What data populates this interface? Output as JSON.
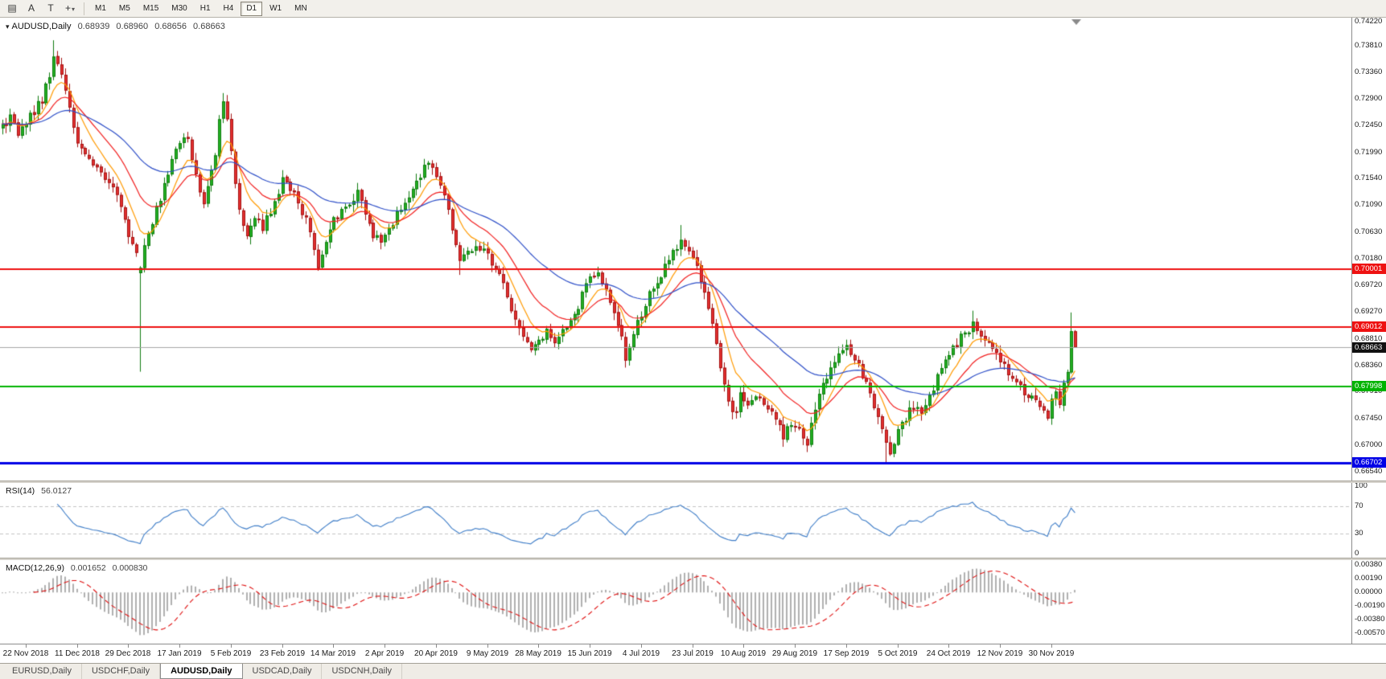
{
  "toolbar": {
    "tools": [
      {
        "name": "chart-window",
        "glyph": "▤"
      },
      {
        "name": "text-label",
        "glyph": "A"
      },
      {
        "name": "text-box",
        "glyph": "T"
      },
      {
        "name": "crosshair",
        "glyph": "+"
      }
    ],
    "dropdown_caret": "▾",
    "timeframes": [
      "M1",
      "M5",
      "M15",
      "M30",
      "H1",
      "H4",
      "D1",
      "W1",
      "MN"
    ],
    "active_timeframe": "D1"
  },
  "chart": {
    "title": {
      "dropdown_glyph": "▾",
      "symbol": "AUDUSD,Daily",
      "open": "0.68939",
      "high": "0.68960",
      "low": "0.68656",
      "close": "0.68663"
    },
    "rsi_label": {
      "name": "RSI(14)",
      "value": "56.0127"
    },
    "macd_label": {
      "name": "MACD(12,26,9)",
      "value1": "0.001652",
      "value2": "0.000830"
    },
    "price_axis": {
      "badges": [
        {
          "label": "0.70001",
          "price": 0.70001,
          "color": "#ee1111"
        },
        {
          "label": "0.69012",
          "price": 0.69012,
          "color": "#ee1111"
        },
        {
          "label": "0.68663",
          "price": 0.68663,
          "color": "#111111"
        },
        {
          "label": "0.67998",
          "price": 0.67998,
          "color": "#00b300"
        },
        {
          "label": "0.66702",
          "price": 0.66702,
          "color": "#0000e6"
        }
      ]
    }
  },
  "chart_data": {
    "type": "candlestick",
    "symbol": "AUDUSD",
    "timeframe": "Daily",
    "title": "AUDUSD,Daily  0.68939 0.68960 0.68656 0.68663",
    "price_range": [
      0.66395,
      0.74285
    ],
    "y_ticks": [
      0.7422,
      0.7381,
      0.7336,
      0.729,
      0.7245,
      0.7199,
      0.7154,
      0.7109,
      0.7063,
      0.7018,
      0.6972,
      0.6927,
      0.6881,
      0.6836,
      0.6791,
      0.6745,
      0.67,
      0.6654
    ],
    "x_labels": [
      "22 Nov 2018",
      "11 Dec 2018",
      "29 Dec 2018",
      "17 Jan 2019",
      "5 Feb 2019",
      "23 Feb 2019",
      "14 Mar 2019",
      "2 Apr 2019",
      "20 Apr 2019",
      "9 May 2019",
      "28 May 2019",
      "15 Jun 2019",
      "4 Jul 2019",
      "23 Jul 2019",
      "10 Aug 2019",
      "29 Aug 2019",
      "17 Sep 2019",
      "5 Oct 2019",
      "24 Oct 2019",
      "12 Nov 2019",
      "30 Nov 2019"
    ],
    "first_label_candle": 6,
    "candles_per_label": 13,
    "candles_count": 273,
    "price_keyframes": [
      [
        0,
        0.724
      ],
      [
        2,
        0.7256
      ],
      [
        4,
        0.723
      ],
      [
        6,
        0.725
      ],
      [
        8,
        0.7268
      ],
      [
        10,
        0.729
      ],
      [
        12,
        0.733
      ],
      [
        13,
        0.7365
      ],
      [
        15,
        0.733
      ],
      [
        17,
        0.728
      ],
      [
        19,
        0.721
      ],
      [
        22,
        0.719
      ],
      [
        25,
        0.7165
      ],
      [
        28,
        0.7138
      ],
      [
        30,
        0.711
      ],
      [
        32,
        0.7058
      ],
      [
        34,
        0.7025
      ],
      [
        35,
        0.6998
      ],
      [
        36,
        0.7045
      ],
      [
        38,
        0.708
      ],
      [
        40,
        0.712
      ],
      [
        42,
        0.716
      ],
      [
        44,
        0.72
      ],
      [
        46,
        0.7228
      ],
      [
        47,
        0.7215
      ],
      [
        49,
        0.716
      ],
      [
        51,
        0.711
      ],
      [
        52,
        0.714
      ],
      [
        54,
        0.72
      ],
      [
        55,
        0.7252
      ],
      [
        56,
        0.7288
      ],
      [
        57,
        0.7248
      ],
      [
        58,
        0.7205
      ],
      [
        59,
        0.715
      ],
      [
        60,
        0.7098
      ],
      [
        62,
        0.706
      ],
      [
        64,
        0.7085
      ],
      [
        66,
        0.7072
      ],
      [
        68,
        0.7098
      ],
      [
        70,
        0.713
      ],
      [
        71,
        0.7152
      ],
      [
        73,
        0.7135
      ],
      [
        75,
        0.7112
      ],
      [
        77,
        0.7085
      ],
      [
        79,
        0.7032
      ],
      [
        80,
        0.7004
      ],
      [
        82,
        0.7048
      ],
      [
        84,
        0.7082
      ],
      [
        86,
        0.71
      ],
      [
        88,
        0.7115
      ],
      [
        90,
        0.7128
      ],
      [
        92,
        0.7092
      ],
      [
        94,
        0.706
      ],
      [
        96,
        0.7042
      ],
      [
        98,
        0.707
      ],
      [
        100,
        0.7092
      ],
      [
        102,
        0.7115
      ],
      [
        104,
        0.714
      ],
      [
        106,
        0.7162
      ],
      [
        108,
        0.7178
      ],
      [
        110,
        0.7155
      ],
      [
        112,
        0.7128
      ],
      [
        114,
        0.7072
      ],
      [
        116,
        0.7012
      ],
      [
        118,
        0.703
      ],
      [
        120,
        0.7042
      ],
      [
        122,
        0.7028
      ],
      [
        124,
        0.7012
      ],
      [
        126,
        0.6988
      ],
      [
        128,
        0.6952
      ],
      [
        130,
        0.6912
      ],
      [
        132,
        0.688
      ],
      [
        134,
        0.6868
      ],
      [
        136,
        0.688
      ],
      [
        138,
        0.6895
      ],
      [
        140,
        0.6872
      ],
      [
        142,
        0.689
      ],
      [
        144,
        0.691
      ],
      [
        146,
        0.6938
      ],
      [
        148,
        0.697
      ],
      [
        150,
        0.6992
      ],
      [
        151,
        0.7
      ],
      [
        153,
        0.6962
      ],
      [
        155,
        0.693
      ],
      [
        157,
        0.689
      ],
      [
        158,
        0.6848
      ],
      [
        160,
        0.6888
      ],
      [
        162,
        0.6925
      ],
      [
        164,
        0.6958
      ],
      [
        166,
        0.6972
      ],
      [
        168,
        0.7005
      ],
      [
        170,
        0.703
      ],
      [
        172,
        0.7052
      ],
      [
        174,
        0.7028
      ],
      [
        176,
        0.7
      ],
      [
        178,
        0.6962
      ],
      [
        180,
        0.6905
      ],
      [
        182,
        0.683
      ],
      [
        184,
        0.6775
      ],
      [
        186,
        0.6752
      ],
      [
        187,
        0.6782
      ],
      [
        189,
        0.6765
      ],
      [
        191,
        0.6788
      ],
      [
        193,
        0.677
      ],
      [
        195,
        0.6752
      ],
      [
        197,
        0.6728
      ],
      [
        198,
        0.6712
      ],
      [
        200,
        0.6738
      ],
      [
        202,
        0.6722
      ],
      [
        204,
        0.6705
      ],
      [
        206,
        0.6758
      ],
      [
        208,
        0.6802
      ],
      [
        210,
        0.6838
      ],
      [
        212,
        0.6858
      ],
      [
        214,
        0.6868
      ],
      [
        216,
        0.6848
      ],
      [
        218,
        0.6818
      ],
      [
        220,
        0.6788
      ],
      [
        222,
        0.6752
      ],
      [
        224,
        0.67
      ],
      [
        225,
        0.6688
      ],
      [
        227,
        0.6722
      ],
      [
        229,
        0.6748
      ],
      [
        231,
        0.6768
      ],
      [
        233,
        0.6752
      ],
      [
        235,
        0.6782
      ],
      [
        237,
        0.6815
      ],
      [
        239,
        0.6845
      ],
      [
        241,
        0.6862
      ],
      [
        243,
        0.6885
      ],
      [
        245,
        0.6898
      ],
      [
        246,
        0.6905
      ],
      [
        248,
        0.6888
      ],
      [
        250,
        0.6868
      ],
      [
        252,
        0.685
      ],
      [
        254,
        0.6836
      ],
      [
        256,
        0.6812
      ],
      [
        258,
        0.6798
      ],
      [
        260,
        0.6786
      ],
      [
        262,
        0.6774
      ],
      [
        264,
        0.676
      ],
      [
        265,
        0.6752
      ],
      [
        266,
        0.6772
      ],
      [
        267,
        0.6788
      ],
      [
        268,
        0.6775
      ],
      [
        269,
        0.68
      ],
      [
        270,
        0.6832
      ],
      [
        271,
        0.6894
      ],
      [
        272,
        0.6866
      ]
    ],
    "overrides": {
      "13": {
        "h": 0.739
      },
      "35": {
        "o": 0.6993,
        "c": 0.7002,
        "h": 0.7005,
        "l": 0.6825
      },
      "56": {
        "h": 0.73
      },
      "80": {
        "l": 0.6997
      },
      "116": {
        "l": 0.699
      },
      "134": {
        "l": 0.6858
      },
      "151": {
        "h": 0.7004
      },
      "158": {
        "l": 0.6832
      },
      "172": {
        "h": 0.7075
      },
      "186": {
        "l": 0.6745
      },
      "198": {
        "l": 0.6697
      },
      "204": {
        "l": 0.6688
      },
      "224": {
        "l": 0.667
      },
      "246": {
        "h": 0.6929
      },
      "271": {
        "c": 0.6894,
        "h": 0.6926
      },
      "272": {
        "o": 0.68939,
        "h": 0.6896,
        "l": 0.68656,
        "c": 0.68663
      }
    },
    "horizontal_lines": [
      {
        "price": 0.70001,
        "color": "#ee1111",
        "width": 2
      },
      {
        "price": 0.69012,
        "color": "#ee1111",
        "width": 2
      },
      {
        "price": 0.68663,
        "color": "#a6a6a6",
        "width": 1
      },
      {
        "price": 0.67998,
        "color": "#00b300",
        "width": 2
      },
      {
        "price": 0.66702,
        "color": "#0000e6",
        "width": 3
      }
    ],
    "moving_averages": [
      {
        "period": 8,
        "color": "#ff9a00"
      },
      {
        "period": 18,
        "color": "#f22020"
      },
      {
        "period": 45,
        "color": "#2e4fc8"
      }
    ],
    "candle_colors": {
      "up_fill": "#23b123",
      "up_stroke": "#0f7c0f",
      "down_fill": "#e43030",
      "down_stroke": "#a31212"
    },
    "rsi": {
      "period": 14,
      "value": 56.0127,
      "color": "#3e7dc8",
      "levels": [
        70,
        30
      ],
      "axis_labels": [
        100,
        70,
        30,
        0
      ],
      "range": [
        0,
        100
      ]
    },
    "macd": {
      "fast": 12,
      "slow": 26,
      "signal": 9,
      "macd_value": 0.001652,
      "signal_value": 0.00083,
      "bar_color": "#b0b0b0",
      "signal_color": "#e01010",
      "axis_ticks": [
        0.0038,
        0.0019,
        0.0,
        -0.0019,
        -0.0038,
        -0.0057
      ]
    }
  },
  "tabs": {
    "items": [
      "EURUSD,Daily",
      "USDCHF,Daily",
      "AUDUSD,Daily",
      "USDCAD,Daily",
      "USDCNH,Daily"
    ],
    "active": "AUDUSD,Daily"
  }
}
